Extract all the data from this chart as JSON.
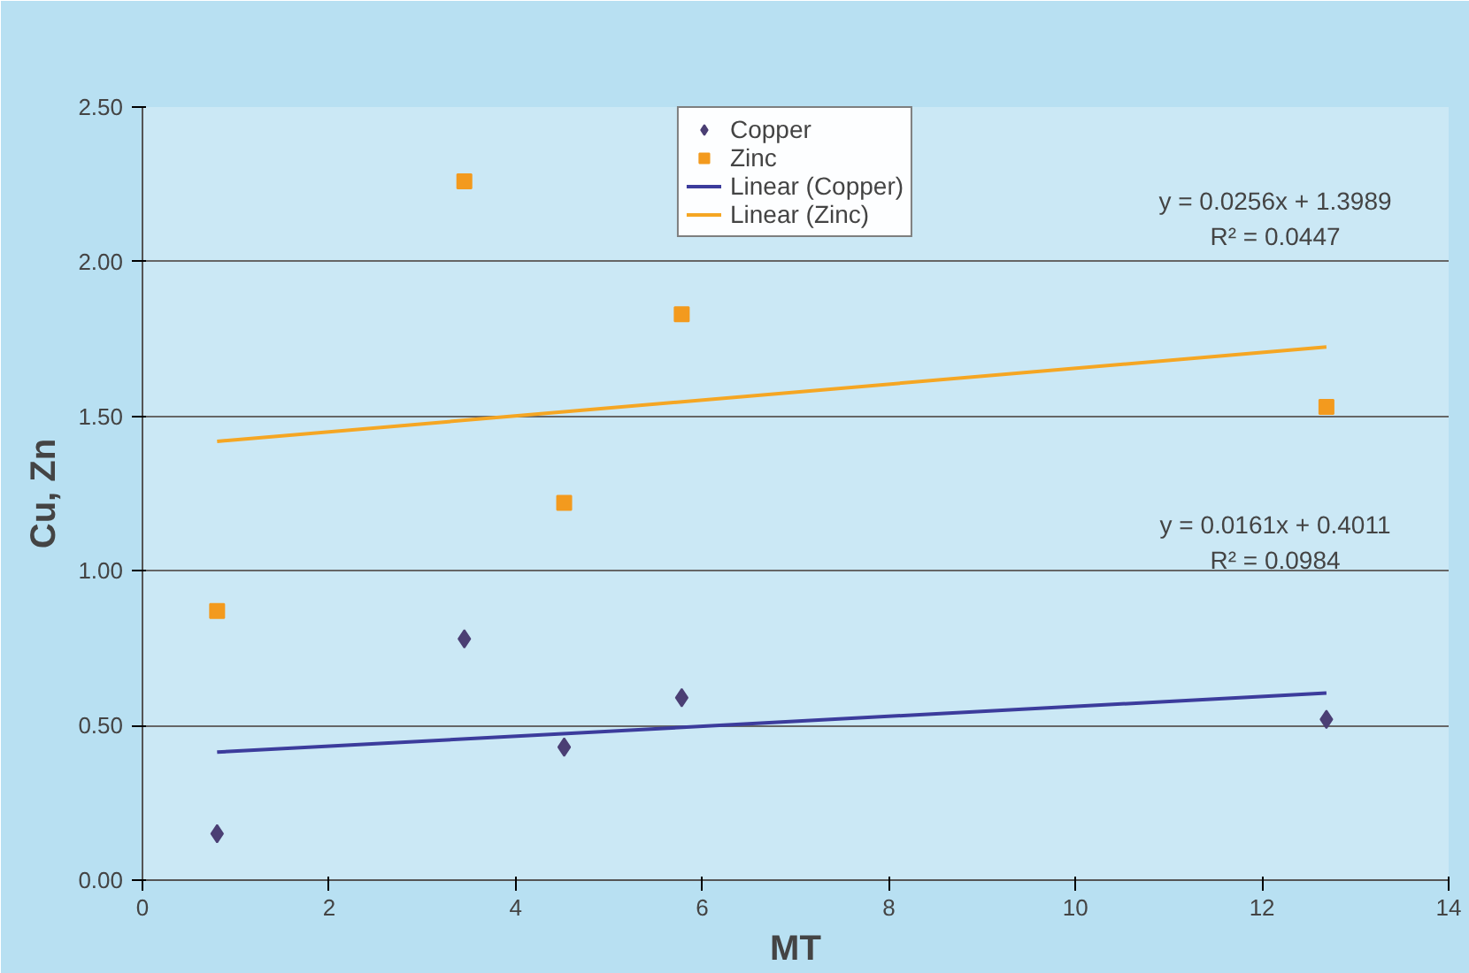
{
  "chart_data": {
    "type": "scatter",
    "xlabel": "MT",
    "ylabel": "Cu, Zn",
    "xlim": [
      0,
      14
    ],
    "xticks": [
      0,
      2,
      4,
      6,
      8,
      10,
      12,
      14
    ],
    "ylim": [
      0,
      2.5
    ],
    "yticks": [
      {
        "value": 0,
        "label": "0.00"
      },
      {
        "value": 0.5,
        "label": "0.50"
      },
      {
        "value": 1,
        "label": "1.00"
      },
      {
        "value": 1.5,
        "label": "1.50"
      },
      {
        "value": 2,
        "label": "2.00"
      },
      {
        "value": 2.5,
        "label": "2.50"
      }
    ],
    "grid": "y",
    "legend": "top",
    "series": [
      {
        "name": "Copper",
        "marker": "diamond",
        "color": "#4b3f74",
        "x": [
          0.8,
          3.45,
          4.52,
          5.78,
          12.69
        ],
        "values": [
          0.15,
          0.78,
          0.43,
          0.59,
          0.52
        ]
      },
      {
        "name": "Zinc",
        "marker": "square",
        "color": "#f39a1e",
        "x": [
          0.8,
          3.45,
          4.52,
          5.78,
          12.69
        ],
        "values": [
          0.87,
          2.26,
          1.22,
          1.83,
          1.53
        ]
      },
      {
        "name": "Linear (Copper)",
        "type": "line",
        "line_style": "solid",
        "color": "#3c3c9c",
        "x": [
          0.8,
          12.69
        ],
        "values": [
          0.414,
          0.605
        ]
      },
      {
        "name": "Linear (Zinc)",
        "type": "line",
        "line_style": "solid",
        "color": "#f5a623",
        "x": [
          0.8,
          12.69
        ],
        "values": [
          1.419,
          1.724
        ]
      }
    ],
    "annotations": [
      "y = 0.0256x + 1.3989",
      "R² = 0.0447",
      "y = 0.0161x + 0.4011",
      "R² = 0.0984"
    ]
  }
}
